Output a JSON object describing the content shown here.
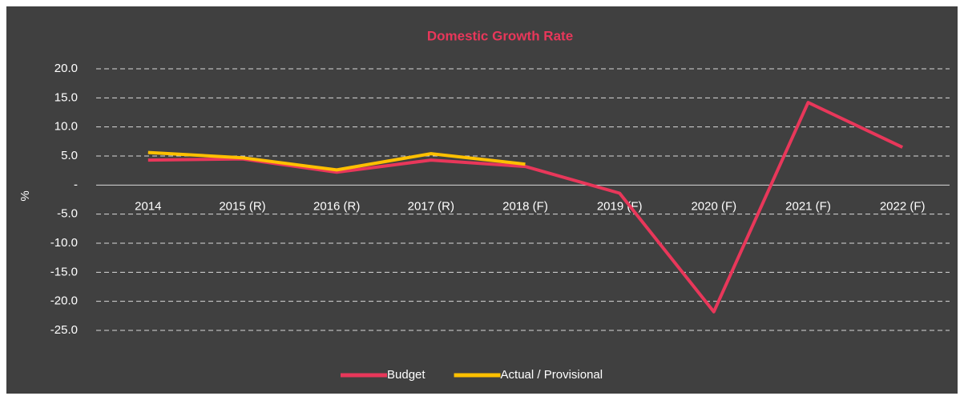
{
  "chart_data": {
    "type": "line",
    "title": "Domestic Growth Rate",
    "title_color": "#e8375a",
    "y_label": "%",
    "categories": [
      "2014",
      "2015 (R)",
      "2016 (R)",
      "2017 (R)",
      "2018 (F)",
      "2019 (F)",
      "2020 (F)",
      "2021 (F)",
      "2022 (F)"
    ],
    "series": [
      {
        "name": "Budget",
        "color": "#e8375a",
        "values": [
          4.3,
          4.5,
          2.2,
          4.3,
          3.2,
          -1.4,
          -21.8,
          14.2,
          6.5
        ]
      },
      {
        "name": "Actual / Provisional",
        "color": "#ffc000",
        "values": [
          5.6,
          4.7,
          2.6,
          5.4,
          3.6,
          null,
          null,
          null,
          null
        ]
      }
    ],
    "ylim": [
      -25,
      20
    ],
    "yticks": [
      {
        "value": -25,
        "label": "-25.0"
      },
      {
        "value": -20,
        "label": "-20.0"
      },
      {
        "value": -15,
        "label": "-15.0"
      },
      {
        "value": -10,
        "label": "-10.0"
      },
      {
        "value": -5,
        "label": "-5.0"
      },
      {
        "value": 0,
        "label": "-"
      },
      {
        "value": 5,
        "label": "5.0"
      },
      {
        "value": 10,
        "label": "10.0"
      },
      {
        "value": 15,
        "label": "15.0"
      },
      {
        "value": 20,
        "label": "20.0"
      }
    ],
    "grid": true,
    "legend": "bottom"
  }
}
